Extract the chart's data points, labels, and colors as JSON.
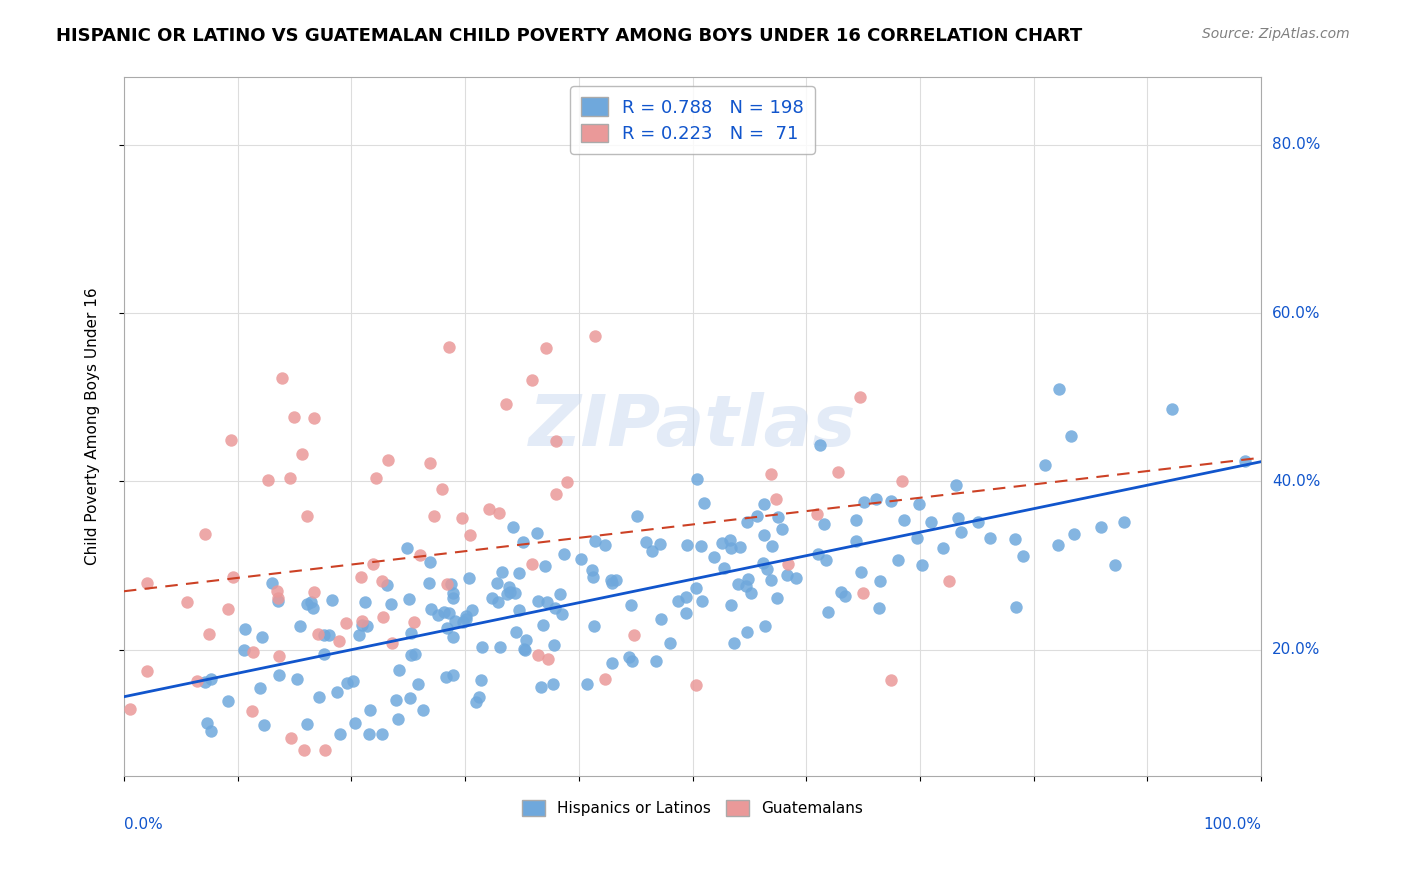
{
  "title": "HISPANIC OR LATINO VS GUATEMALAN CHILD POVERTY AMONG BOYS UNDER 16 CORRELATION CHART",
  "source": "Source: ZipAtlas.com",
  "ylabel": "Child Poverty Among Boys Under 16",
  "legend1_label": "Hispanics or Latinos",
  "legend2_label": "Guatemalans",
  "r1": 0.788,
  "n1": 198,
  "r2": 0.223,
  "n2": 71,
  "blue_color": "#6fa8dc",
  "pink_color": "#ea9999",
  "blue_line_color": "#1155cc",
  "pink_line_color": "#cc4125",
  "watermark": "ZIPatlas"
}
